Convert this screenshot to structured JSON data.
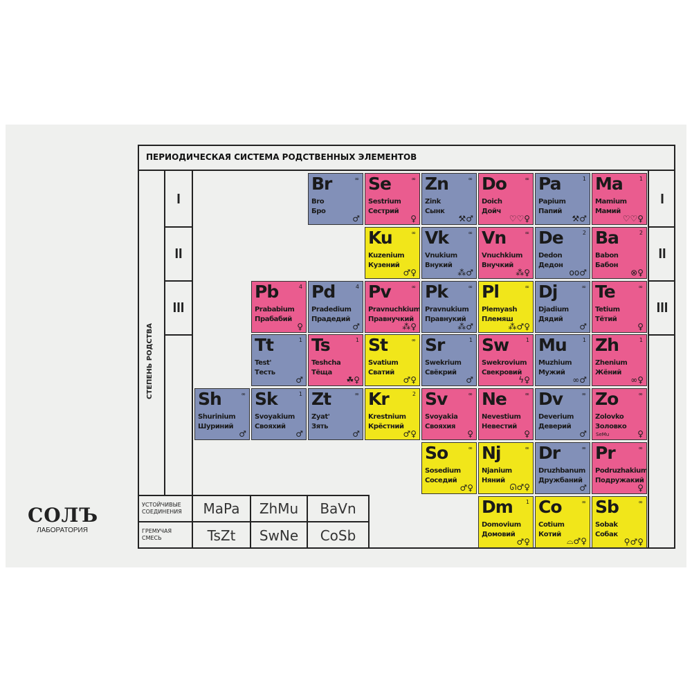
{
  "title": "ПЕРИОДИЧЕСКАЯ СИСТЕМА РОДСТВЕННЫХ ЭЛЕМЕНТОВ",
  "axis_label": "СТЕПЕНЬ РОДСТВА",
  "romans": [
    "I",
    "II",
    "III"
  ],
  "colors": {
    "blue": "#8290b8",
    "pink": "#ea5c8f",
    "yellow": "#f1e61a"
  },
  "elements": [
    {
      "sym": "Br",
      "num": "∞",
      "lat": "Bro",
      "cyr": "Бро",
      "color": "blue",
      "row": 0,
      "col": 2,
      "icons": "♂"
    },
    {
      "sym": "Se",
      "num": "∞",
      "lat": "Sestrium",
      "cyr": "Сестрий",
      "color": "pink",
      "row": 0,
      "col": 3,
      "icons": "♀"
    },
    {
      "sym": "Zn",
      "num": "∞",
      "lat": "Zink",
      "cyr": "Сынк",
      "color": "blue",
      "row": 0,
      "col": 4,
      "icons": "⚒♂"
    },
    {
      "sym": "Do",
      "num": "∞",
      "lat": "Doich",
      "cyr": "Дойч",
      "color": "pink",
      "row": 0,
      "col": 5,
      "icons": "♡♡♀"
    },
    {
      "sym": "Pa",
      "num": "1",
      "lat": "Papium",
      "cyr": "Папий",
      "color": "blue",
      "row": 0,
      "col": 6,
      "icons": "⚒♂"
    },
    {
      "sym": "Ma",
      "num": "1",
      "lat": "Mamium",
      "cyr": "Мамий",
      "color": "pink",
      "row": 0,
      "col": 7,
      "icons": "♡♡♀"
    },
    {
      "sym": "Ku",
      "num": "∞",
      "lat": "Kuzenium",
      "cyr": "Кузений",
      "color": "yellow",
      "row": 1,
      "col": 3,
      "icons": "♂♀"
    },
    {
      "sym": "Vk",
      "num": "∞",
      "lat": "Vnukium",
      "cyr": "Внукий",
      "color": "blue",
      "row": 1,
      "col": 4,
      "icons": "⁂♂"
    },
    {
      "sym": "Vn",
      "num": "∞",
      "lat": "Vnuchkium",
      "cyr": "Внучкий",
      "color": "pink",
      "row": 1,
      "col": 5,
      "icons": "⁂♀"
    },
    {
      "sym": "De",
      "num": "2",
      "lat": "Dedon",
      "cyr": "Дедон",
      "color": "blue",
      "row": 1,
      "col": 6,
      "icons": "oo♂"
    },
    {
      "sym": "Ba",
      "num": "2",
      "lat": "Babon",
      "cyr": "Бабон",
      "color": "pink",
      "row": 1,
      "col": 7,
      "icons": "⊗♀"
    },
    {
      "sym": "Pb",
      "num": "4",
      "lat": "Prababium",
      "cyr": "Прабабий",
      "color": "pink",
      "row": 2,
      "col": 1,
      "icons": "♀"
    },
    {
      "sym": "Pd",
      "num": "4",
      "lat": "Pradedium",
      "cyr": "Прадедий",
      "color": "blue",
      "row": 2,
      "col": 2,
      "icons": "♂"
    },
    {
      "sym": "Pv",
      "num": "∞",
      "lat": "Pravnuchkium",
      "cyr": "Правнучкий",
      "color": "pink",
      "row": 2,
      "col": 3,
      "icons": "⁂♀"
    },
    {
      "sym": "Pk",
      "num": "∞",
      "lat": "Pravnukium",
      "cyr": "Правнукий",
      "color": "blue",
      "row": 2,
      "col": 4,
      "icons": "⁂♂"
    },
    {
      "sym": "Pl",
      "num": "∞",
      "lat": "Plemyash",
      "cyr": "Племяш",
      "color": "yellow",
      "row": 2,
      "col": 5,
      "icons": "⁂♂♀"
    },
    {
      "sym": "Dj",
      "num": "∞",
      "lat": "Djadium",
      "cyr": "Дядий",
      "color": "blue",
      "row": 2,
      "col": 6,
      "icons": "♂"
    },
    {
      "sym": "Te",
      "num": "∞",
      "lat": "Tetium",
      "cyr": "Тётий",
      "color": "pink",
      "row": 2,
      "col": 7,
      "icons": "♀"
    },
    {
      "sym": "Tt",
      "num": "1",
      "lat": "Test'",
      "cyr": "Тесть",
      "color": "blue",
      "row": 3,
      "col": 1,
      "icons": "♂"
    },
    {
      "sym": "Ts",
      "num": "1",
      "lat": "Teshcha",
      "cyr": "Тёща",
      "color": "pink",
      "row": 3,
      "col": 2,
      "icons": "☘♀"
    },
    {
      "sym": "St",
      "num": "∞",
      "lat": "Svatium",
      "cyr": "Сватий",
      "color": "yellow",
      "row": 3,
      "col": 3,
      "icons": "♂♀"
    },
    {
      "sym": "Sr",
      "num": "1",
      "lat": "Swekrium",
      "cyr": "Свёкрий",
      "color": "blue",
      "row": 3,
      "col": 4,
      "icons": "♂"
    },
    {
      "sym": "Sw",
      "num": "1",
      "lat": "Swekrovium",
      "cyr": "Свекровий",
      "color": "pink",
      "row": 3,
      "col": 5,
      "icons": "ϟ♀"
    },
    {
      "sym": "Mu",
      "num": "1",
      "lat": "Muzhium",
      "cyr": "Мужий",
      "color": "blue",
      "row": 3,
      "col": 6,
      "icons": "∞♂"
    },
    {
      "sym": "Zh",
      "num": "1",
      "lat": "Zhenium",
      "cyr": "Жёний",
      "color": "pink",
      "row": 3,
      "col": 7,
      "icons": "∞♀"
    },
    {
      "sym": "Sh",
      "num": "∞",
      "lat": "Shurinium",
      "cyr": "Шуриний",
      "color": "blue",
      "row": 4,
      "col": 0,
      "icons": "♂"
    },
    {
      "sym": "Sk",
      "num": "1",
      "lat": "Svoyakium",
      "cyr": "Свояхий",
      "color": "blue",
      "row": 4,
      "col": 1,
      "icons": "♂"
    },
    {
      "sym": "Zt",
      "num": "∞",
      "lat": "Zyat'",
      "cyr": "Зять",
      "color": "blue",
      "row": 4,
      "col": 2,
      "icons": "♂"
    },
    {
      "sym": "Kr",
      "num": "2",
      "lat": "Krestnium",
      "cyr": "Крёстний",
      "color": "yellow",
      "row": 4,
      "col": 3,
      "icons": "♂♀"
    },
    {
      "sym": "Sv",
      "num": "∞",
      "lat": "Svoyakia",
      "cyr": "Свояхия",
      "color": "pink",
      "row": 4,
      "col": 4,
      "icons": "♀"
    },
    {
      "sym": "Ne",
      "num": "∞",
      "lat": "Nevestium",
      "cyr": "Невестий",
      "color": "pink",
      "row": 4,
      "col": 5,
      "icons": "♀"
    },
    {
      "sym": "Dv",
      "num": "∞",
      "lat": "Deverium",
      "cyr": "Деверий",
      "color": "blue",
      "row": 4,
      "col": 6,
      "icons": "♂"
    },
    {
      "sym": "Zo",
      "num": "∞",
      "lat": "Zolovko",
      "cyr": "Золовко",
      "note": "SeMu",
      "color": "pink",
      "row": 4,
      "col": 7,
      "icons": "♀"
    },
    {
      "sym": "So",
      "num": "∞",
      "lat": "Sosedium",
      "cyr": "Соседий",
      "color": "yellow",
      "row": 5,
      "col": 4,
      "icons": "♂♀"
    },
    {
      "sym": "Nj",
      "num": "∞",
      "lat": "Njanium",
      "cyr": "Няний",
      "color": "yellow",
      "row": 5,
      "col": 5,
      "icons": "ᘏ♂♀"
    },
    {
      "sym": "Dr",
      "num": "∞",
      "lat": "Druzhbanum",
      "cyr": "Дружбаний",
      "color": "blue",
      "row": 5,
      "col": 6,
      "icons": "♂"
    },
    {
      "sym": "Pr",
      "num": "∞",
      "lat": "Podruzhakium",
      "cyr": "Подружакий",
      "color": "pink",
      "row": 5,
      "col": 7,
      "icons": "♀"
    },
    {
      "sym": "Dm",
      "num": "1",
      "lat": "Domovium",
      "cyr": "Домовий",
      "color": "yellow",
      "row": 6,
      "col": 5,
      "icons": "♂♀"
    },
    {
      "sym": "Co",
      "num": "∞",
      "lat": "Cotium",
      "cyr": "Котий",
      "color": "yellow",
      "row": 6,
      "col": 6,
      "icons": "⌓♂♀"
    },
    {
      "sym": "Sb",
      "num": "∞",
      "lat": "Sobak",
      "cyr": "Собак",
      "color": "yellow",
      "row": 6,
      "col": 7,
      "icons": "⚲♂♀"
    }
  ],
  "compounds": {
    "stable_label": "УСТОЙЧИВЫЕ СОЕДИНЕНИЯ",
    "stable": [
      "MaPa",
      "ZhMu",
      "BaVn"
    ],
    "explosive_label": "ГРЕМУЧАЯ СМЕСЬ",
    "explosive": [
      "TsZt",
      "SwNe",
      "CoSb"
    ]
  },
  "logo": {
    "name": "СОЛЪ",
    "subtitle": "ЛАБОРАТОРИЯ"
  }
}
